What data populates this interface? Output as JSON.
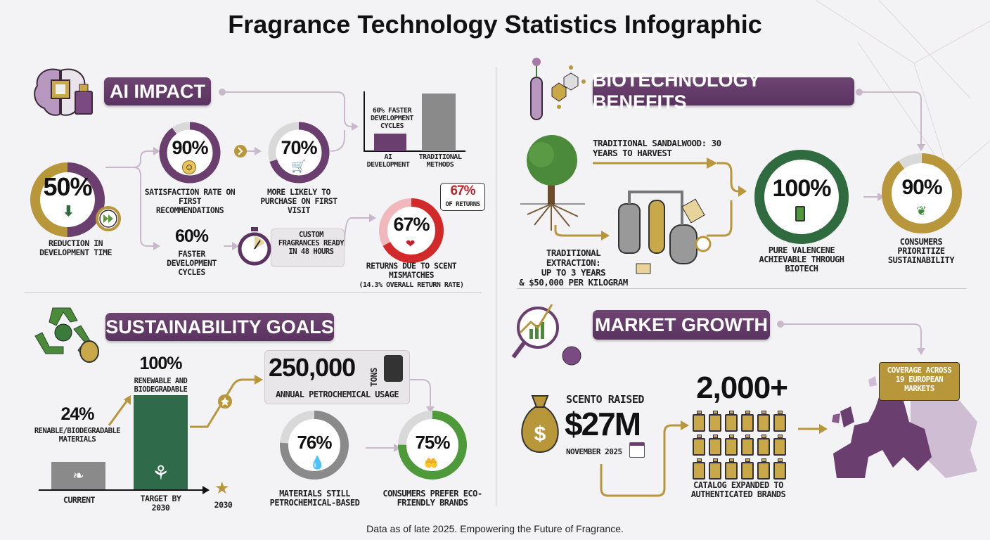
{
  "title": "Fragrance Technology Statistics Infographic",
  "colors": {
    "purple": "#6a3f6f",
    "gold": "#b8963a",
    "green": "#2f6b3e",
    "bright_green": "#4e9a3a",
    "red": "#d22a2a",
    "gray": "#8a8a8a",
    "light_gray": "#d9d9d9"
  },
  "ai_impact": {
    "heading": "AI IMPACT",
    "reduction": {
      "value": "50%",
      "percent": 50,
      "label": "REDUCTION IN DEVELOPMENT TIME"
    },
    "satisfaction": {
      "value": "90%",
      "percent": 90,
      "label": "SATISFACTION RATE ON FIRST RECOMMENDATIONS"
    },
    "purchase": {
      "value": "70%",
      "percent": 70,
      "label": "MORE LIKELY TO PURCHASE ON FIRST VISIT"
    },
    "faster": {
      "value": "60%",
      "label": "FASTER DEVELOPMENT CYCLES"
    },
    "custom": {
      "label": "CUSTOM FRAGRANCES READY IN 48 HOURS"
    },
    "comparison": {
      "annotation": "60% FASTER DEVELOPMENT CYCLES",
      "bar_ai": "AI DEVELOPMENT",
      "bar_traditional": "TRADITIONAL METHODS"
    },
    "returns": {
      "value": "67%",
      "percent": 67,
      "label": "RETURNS DUE TO SCENT MISMATCHES",
      "sublabel": "(14.3% OVERALL RETURN RATE)",
      "bubble_value": "67%",
      "bubble_label": "OF RETURNS"
    }
  },
  "biotech": {
    "heading": "BIOTECHNOLOGY BENEFITS",
    "sandalwood": "TRADITIONAL SANDALWOOD: 30 YEARS TO HARVEST",
    "extraction": [
      "TRADITIONAL EXTRACTION:",
      "UP TO 3 YEARS",
      "& $50,000 PER KILOGRAM"
    ],
    "valencene": {
      "value": "100%",
      "percent": 100,
      "label": "PURE VALENCENE ACHIEVABLE THROUGH BIOTECH"
    },
    "sustainability": {
      "value": "90%",
      "percent": 90,
      "label": "CONSUMERS PRIORITIZE SUSTAINABILITY"
    }
  },
  "sustainability": {
    "heading": "SUSTAINABILITY GOALS",
    "current": {
      "value": "24%",
      "label": "RENABLE/BIODEGRADABLE MATERIALS",
      "axis": "CURRENT"
    },
    "target": {
      "value": "100%",
      "label": "RENEWABLE AND BIODEGRADABLE",
      "axis": "TARGET BY 2030"
    },
    "year": "2030",
    "petro": {
      "value": "250,000",
      "unit": "TONS",
      "label": "ANNUAL PETROCHEMICAL USAGE"
    },
    "materials": {
      "value": "76%",
      "percent": 76,
      "label": "MATERIALS STILL PETROCHEMICAL-BASED"
    },
    "eco": {
      "value": "75%",
      "percent": 75,
      "label": "CONSUMERS PREFER ECO-FRIENDLY BRANDS"
    }
  },
  "market": {
    "heading": "MARKET GROWTH",
    "raised_label": "SCENTO RAISED",
    "raised_value": "$27M",
    "raised_date": "NOVEMBER 2025",
    "catalog_value": "2,000+",
    "catalog_label": "CATALOG EXPANDED TO AUTHENTICATED BRANDS",
    "coverage": "COVERAGE ACROSS 19 EUROPEAN MARKETS"
  },
  "footer": "Data as of late 2025. Empowering the Future of Fragrance."
}
